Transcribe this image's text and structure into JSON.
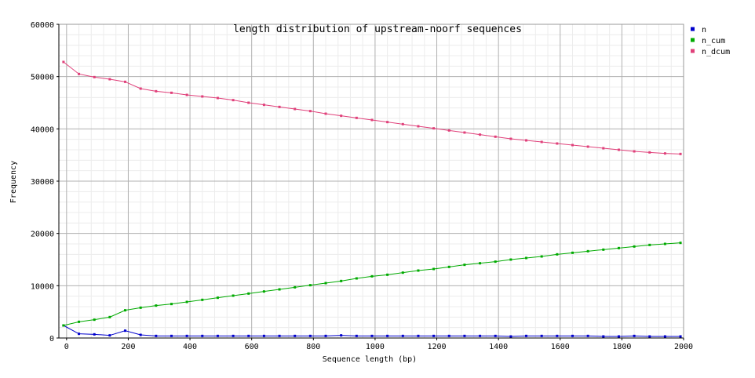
{
  "chart_data": {
    "type": "line",
    "title": "length distribution of upstream-noorf sequences",
    "xlabel": "Sequence length (bp)",
    "ylabel": "Frequency",
    "xlim": [
      -25,
      2000
    ],
    "ylim": [
      0,
      60000
    ],
    "xticks": [
      0,
      200,
      400,
      600,
      800,
      1000,
      1200,
      1400,
      1600,
      1800,
      2000
    ],
    "yticks": [
      0,
      10000,
      20000,
      30000,
      40000,
      50000,
      60000
    ],
    "grid": true,
    "legend_position": "right",
    "x": [
      -10,
      40,
      90,
      140,
      190,
      240,
      290,
      340,
      390,
      440,
      490,
      540,
      590,
      640,
      690,
      740,
      790,
      840,
      890,
      940,
      990,
      1040,
      1090,
      1140,
      1190,
      1240,
      1290,
      1340,
      1390,
      1440,
      1490,
      1540,
      1590,
      1640,
      1690,
      1740,
      1790,
      1840,
      1890,
      1940,
      1990
    ],
    "series": [
      {
        "name": "n",
        "color": "#0000cc",
        "values": [
          2400,
          800,
          700,
          500,
          1400,
          600,
          400,
          400,
          400,
          400,
          400,
          400,
          400,
          400,
          400,
          400,
          400,
          400,
          500,
          400,
          400,
          400,
          400,
          400,
          400,
          400,
          400,
          400,
          400,
          300,
          400,
          400,
          400,
          400,
          400,
          300,
          300,
          400,
          300,
          300,
          300
        ]
      },
      {
        "name": "n_cum",
        "color": "#00aa00",
        "values": [
          2400,
          3100,
          3500,
          4000,
          5300,
          5800,
          6200,
          6500,
          6900,
          7300,
          7700,
          8100,
          8500,
          8900,
          9300,
          9700,
          10100,
          10500,
          10900,
          11400,
          11800,
          12100,
          12500,
          12900,
          13200,
          13600,
          14000,
          14300,
          14600,
          15000,
          15300,
          15600,
          16000,
          16300,
          16600,
          16900,
          17200,
          17500,
          17800,
          18000,
          18200
        ]
      },
      {
        "name": "n_dcum",
        "color": "#e0407a",
        "values": [
          52800,
          50500,
          49900,
          49500,
          49000,
          47700,
          47200,
          46900,
          46500,
          46200,
          45900,
          45500,
          45000,
          44600,
          44200,
          43800,
          43400,
          42900,
          42500,
          42100,
          41700,
          41300,
          40900,
          40500,
          40100,
          39700,
          39300,
          38900,
          38500,
          38100,
          37800,
          37500,
          37200,
          36900,
          36600,
          36300,
          36000,
          35700,
          35500,
          35300,
          35200
        ]
      }
    ]
  }
}
